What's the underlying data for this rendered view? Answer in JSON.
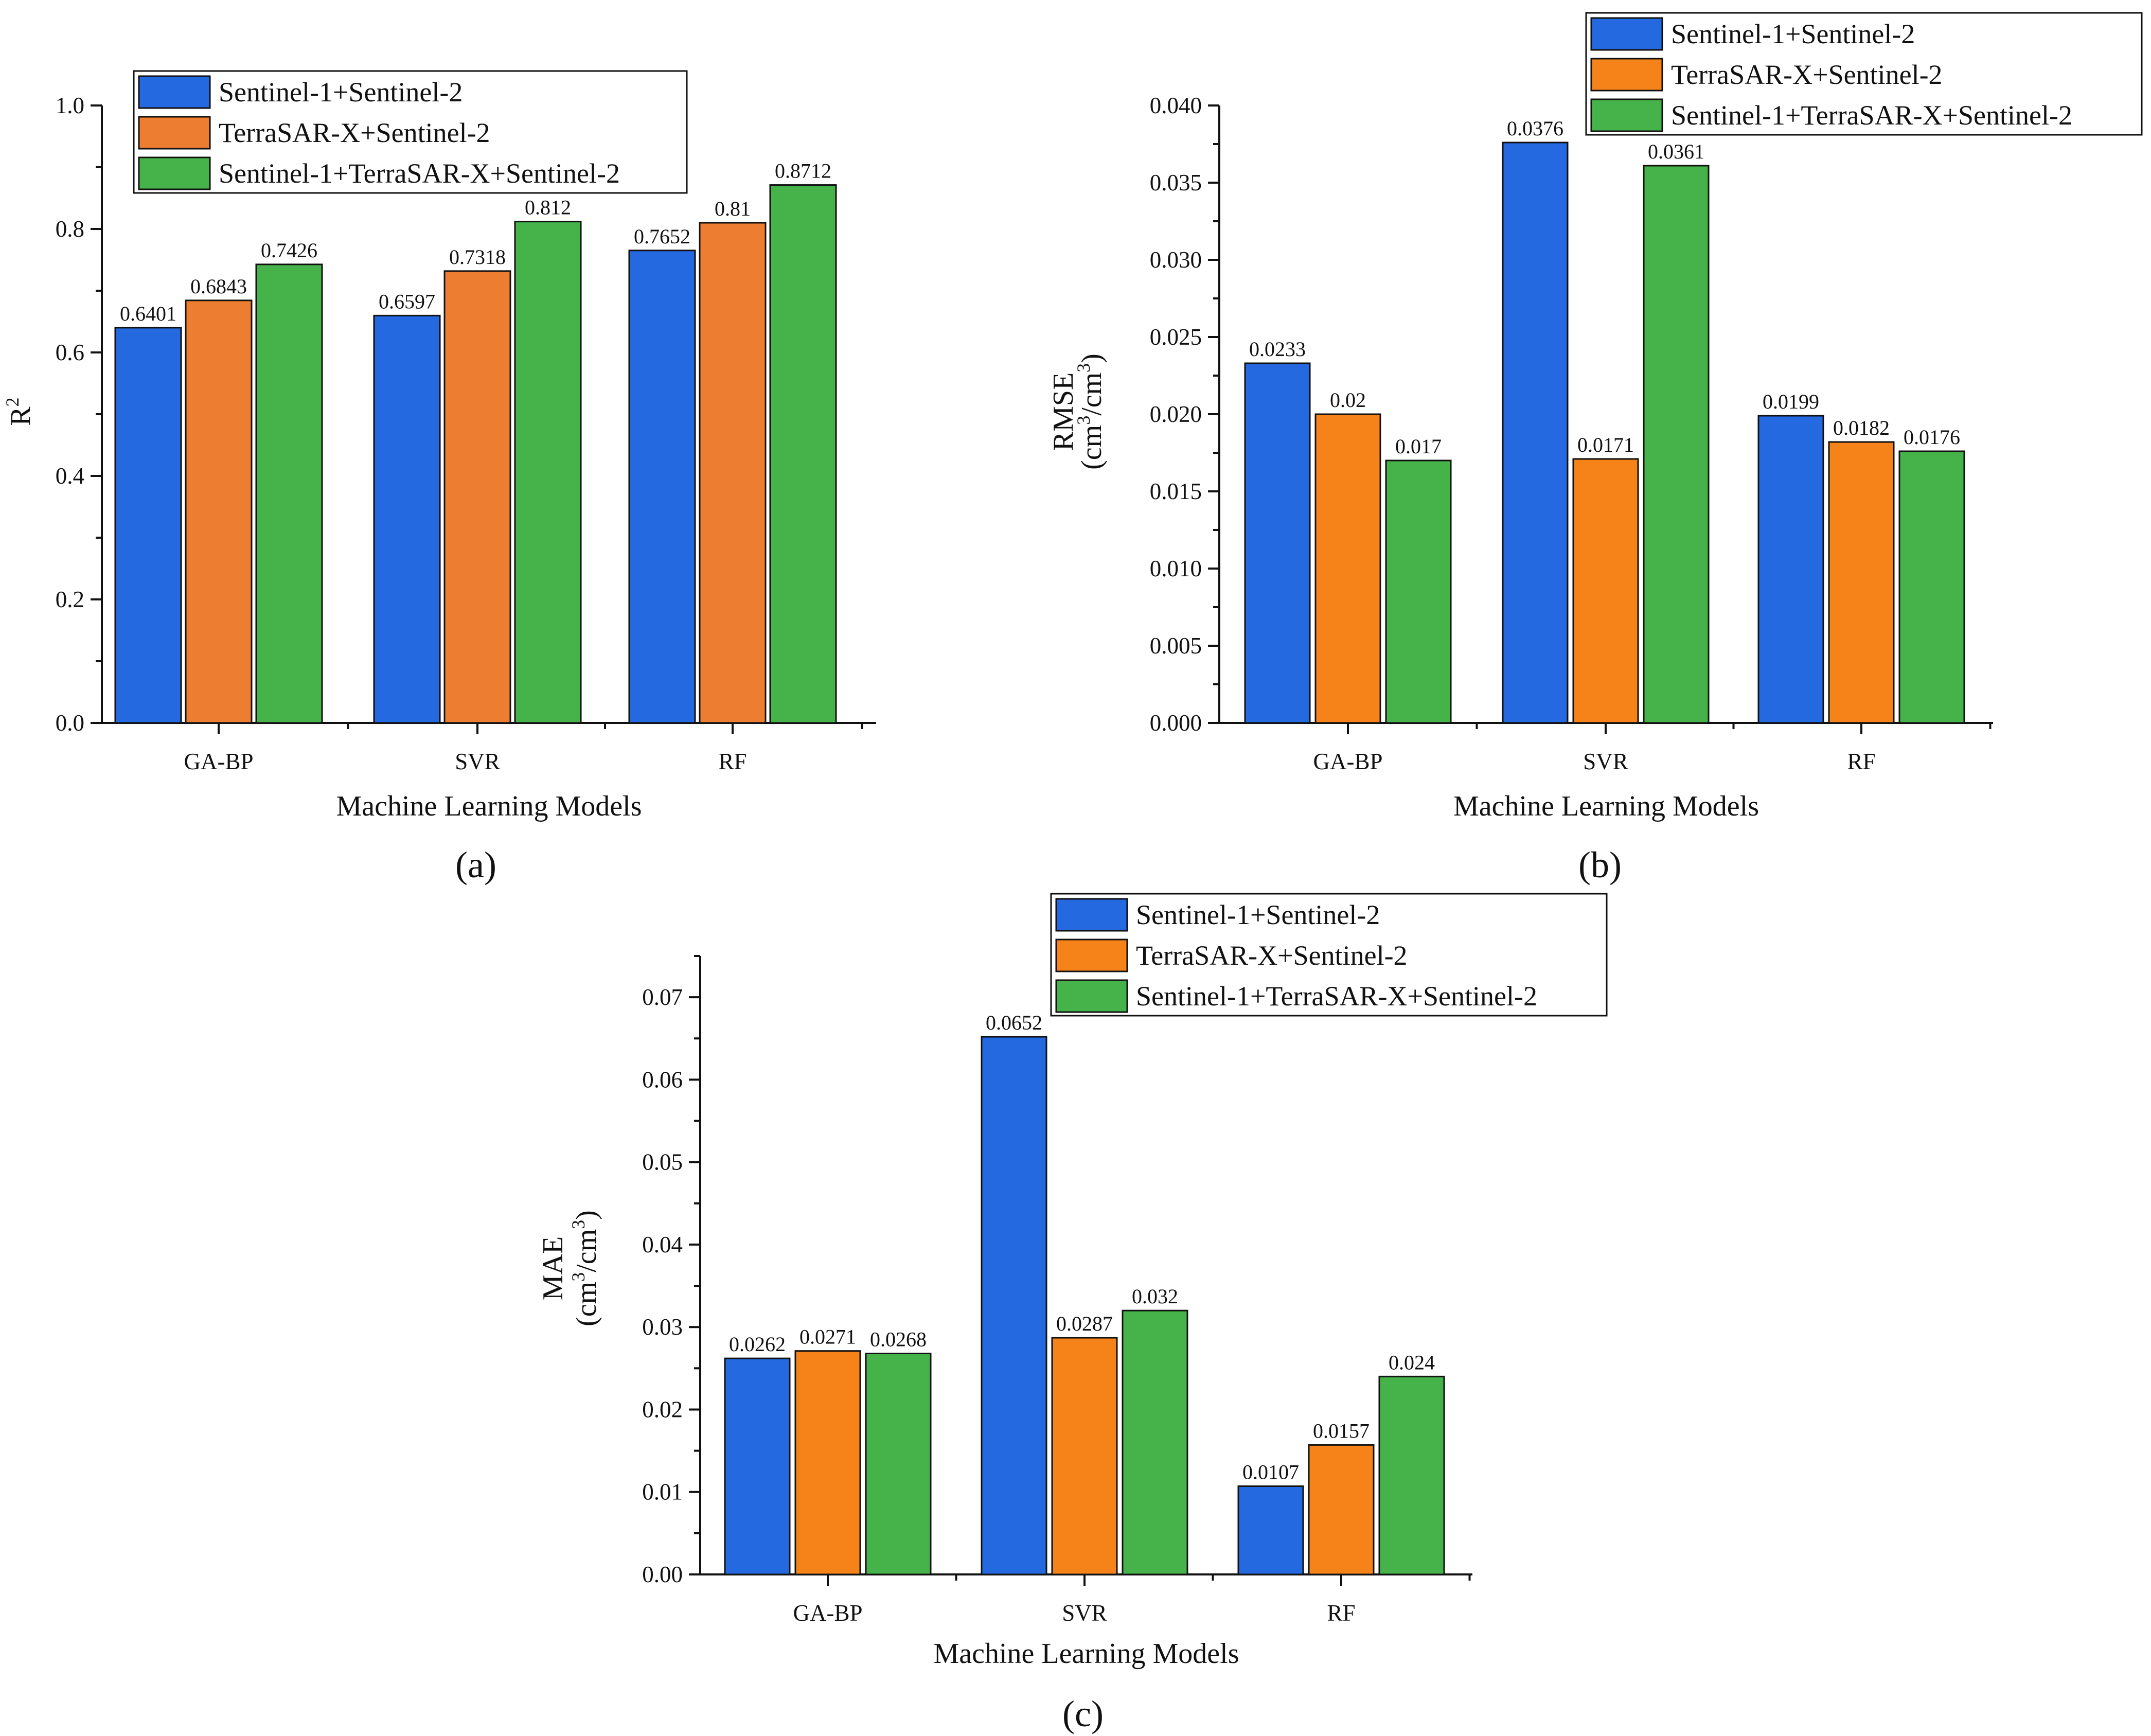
{
  "series_colors": [
    "#2569e0",
    "#f58319",
    "#46b34a"
  ],
  "r2_series_colors": [
    "#2569e0",
    "#ed7d31",
    "#46b34a"
  ],
  "legend_labels": [
    "Sentinel-1+Sentinel-2",
    "TerraSAR-X+Sentinel-2",
    "Sentinel-1+TerraSAR-X+Sentinel-2"
  ],
  "chart_data": [
    {
      "id": "a",
      "type": "bar",
      "panel_label": "(a)",
      "categories": [
        "GA-BP",
        "SVR",
        "RF"
      ],
      "series": [
        {
          "name": "Sentinel-1+Sentinel-2",
          "values": [
            0.6401,
            0.6597,
            0.7652
          ],
          "labels": [
            "0.6401",
            "0.6597",
            "0.7652"
          ]
        },
        {
          "name": "TerraSAR-X+Sentinel-2",
          "values": [
            0.6843,
            0.7318,
            0.81
          ],
          "labels": [
            "0.6843",
            "0.7318",
            "0.81"
          ]
        },
        {
          "name": "Sentinel-1+TerraSAR-X+Sentinel-2",
          "values": [
            0.7426,
            0.812,
            0.8712
          ],
          "labels": [
            "0.7426",
            "0.812",
            "0.8712"
          ]
        }
      ],
      "xlabel": "Machine Learning Models",
      "ylabel": "R",
      "ylabel_sup": "2",
      "ylim": [
        0,
        1.0
      ],
      "yticks": [
        "0.0",
        "0.2",
        "0.4",
        "0.6",
        "0.8",
        "1.0"
      ],
      "legend_position": "top-left"
    },
    {
      "id": "b",
      "type": "bar",
      "panel_label": "(b)",
      "categories": [
        "GA-BP",
        "SVR",
        "RF"
      ],
      "series": [
        {
          "name": "Sentinel-1+Sentinel-2",
          "values": [
            0.0233,
            0.0376,
            0.0199
          ],
          "labels": [
            "0.0233",
            "0.0376",
            "0.0199"
          ]
        },
        {
          "name": "TerraSAR-X+Sentinel-2",
          "values": [
            0.02,
            0.0171,
            0.0182
          ],
          "labels": [
            "0.02",
            "0.0171",
            "0.0182"
          ]
        },
        {
          "name": "Sentinel-1+TerraSAR-X+Sentinel-2",
          "values": [
            0.017,
            0.0361,
            0.0176
          ],
          "labels": [
            "0.017",
            "0.0361",
            "0.0176"
          ]
        }
      ],
      "xlabel": "Machine Learning Models",
      "ylabel": "RMSE",
      "ylabel_unit": [
        "(cm",
        "3",
        "/cm",
        "3",
        ")"
      ],
      "ylim": [
        0,
        0.04
      ],
      "yticks": [
        "0.000",
        "0.005",
        "0.010",
        "0.015",
        "0.020",
        "0.025",
        "0.030",
        "0.035",
        "0.040"
      ],
      "legend_position": "top-right"
    },
    {
      "id": "c",
      "type": "bar",
      "panel_label": "(c)",
      "categories": [
        "GA-BP",
        "SVR",
        "RF"
      ],
      "series": [
        {
          "name": "Sentinel-1+Sentinel-2",
          "values": [
            0.0262,
            0.0652,
            0.0107
          ],
          "labels": [
            "0.0262",
            "0.0652",
            "0.0107"
          ]
        },
        {
          "name": "TerraSAR-X+Sentinel-2",
          "values": [
            0.0271,
            0.0287,
            0.0157
          ],
          "labels": [
            "0.0271",
            "0.0287",
            "0.0157"
          ]
        },
        {
          "name": "Sentinel-1+TerraSAR-X+Sentinel-2",
          "values": [
            0.0268,
            0.032,
            0.024
          ],
          "labels": [
            "0.0268",
            "0.032",
            "0.024"
          ]
        }
      ],
      "xlabel": "Machine Learning Models",
      "ylabel": "MAE",
      "ylabel_unit": [
        "(cm",
        "3",
        "/cm",
        "3",
        ")"
      ],
      "ylim": [
        0,
        0.075
      ],
      "yticks": [
        "0.00",
        "0.01",
        "0.02",
        "0.03",
        "0.04",
        "0.05",
        "0.06",
        "0.07"
      ],
      "yticks_values": [
        0,
        0.01,
        0.02,
        0.03,
        0.04,
        0.05,
        0.06,
        0.07
      ],
      "legend_position": "top-right"
    }
  ]
}
